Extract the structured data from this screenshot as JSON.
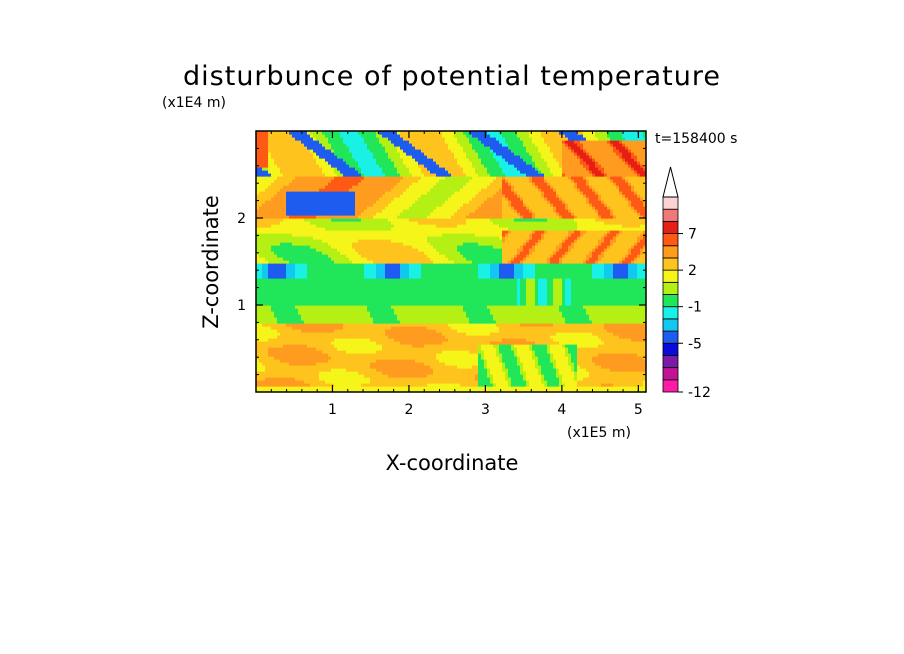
{
  "chart_data": {
    "type": "heatmap",
    "title": "disturbunce of potential temperature",
    "time_label": "t=158400 s",
    "xlabel": "X-coordinate",
    "ylabel": "Z-coordinate",
    "x_unit": "(x1E5 m)",
    "y_unit": "(x1E4 m)",
    "xlim": [
      0,
      5.1
    ],
    "ylim": [
      0,
      3.0
    ],
    "x_ticks": [
      1,
      2,
      3,
      4,
      5
    ],
    "y_ticks": [
      1,
      2
    ],
    "x_tick_labels": [
      "1",
      "2",
      "3",
      "4",
      "5"
    ],
    "y_tick_labels": [
      "1",
      "2"
    ],
    "colorbar": {
      "levels": [
        -12,
        -11,
        -9,
        -7,
        -5,
        -4,
        -3,
        -1,
        0,
        1,
        2,
        3,
        5,
        7,
        9,
        11
      ],
      "tick_labels": [
        "7",
        "2",
        "-1",
        "-5",
        "-12"
      ],
      "tick_values": [
        7,
        2,
        -1,
        -5,
        -12
      ],
      "colors": [
        "#ff1aa8",
        "#c21296",
        "#7a1ba8",
        "#0a0adc",
        "#1e5cf0",
        "#13c8f0",
        "#19f0e6",
        "#21e65a",
        "#b4f014",
        "#f5f51a",
        "#ffc31e",
        "#ff9b1e",
        "#ff5a14",
        "#e61e14",
        "#f07878",
        "#fad2d2"
      ],
      "extend": "max"
    },
    "bands": [
      {
        "z": [
          0.0,
          0.8
        ],
        "value": 3,
        "desc": "yellow/orange lower layer"
      },
      {
        "z": [
          0.8,
          1.0
        ],
        "value": 0.5,
        "desc": "green transition"
      },
      {
        "z": [
          1.0,
          1.3
        ],
        "value": -1,
        "desc": "cyan band"
      },
      {
        "z": [
          1.3,
          1.5
        ],
        "value": -4,
        "desc": "blue blobs"
      },
      {
        "z": [
          1.5,
          2.0
        ],
        "value": 1.5,
        "desc": "green/yellow mixed"
      },
      {
        "z": [
          2.0,
          2.5
        ],
        "value": 4,
        "desc": "orange waves"
      },
      {
        "z": [
          2.5,
          3.0
        ],
        "value": 1,
        "desc": "green/blue upper"
      }
    ]
  }
}
